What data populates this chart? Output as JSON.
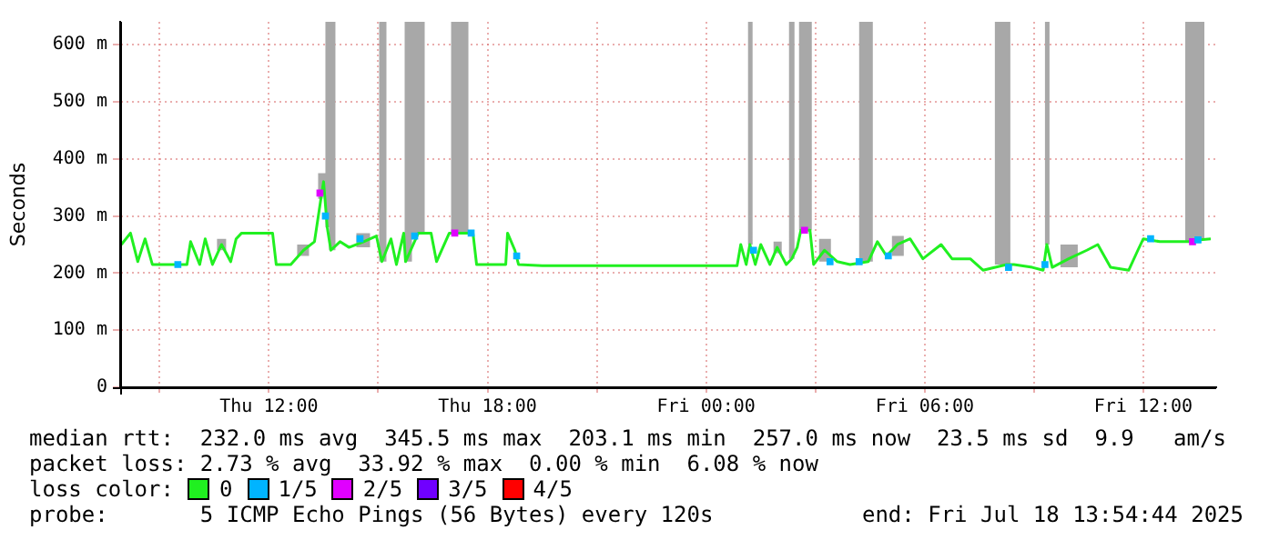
{
  "chart_data": {
    "type": "line",
    "ylabel": "Seconds",
    "xlim": [
      "2025-07-17T07:55",
      "2025-07-18T14:00"
    ],
    "xticks": [
      {
        "value": "2025-07-17T09:00",
        "label": null
      },
      {
        "value": "2025-07-17T12:00",
        "label": "Thu 12:00"
      },
      {
        "value": "2025-07-17T15:00",
        "label": null
      },
      {
        "value": "2025-07-17T18:00",
        "label": "Thu 18:00"
      },
      {
        "value": "2025-07-17T21:00",
        "label": null
      },
      {
        "value": "2025-07-18T00:00",
        "label": "Fri 00:00"
      },
      {
        "value": "2025-07-18T03:00",
        "label": null
      },
      {
        "value": "2025-07-18T06:00",
        "label": "Fri 06:00"
      },
      {
        "value": "2025-07-18T09:00",
        "label": null
      },
      {
        "value": "2025-07-18T12:00",
        "label": "Fri 12:00"
      }
    ],
    "ylim": [
      0,
      640
    ],
    "yticks": [
      0,
      {
        "value": 100,
        "label": "100 m"
      },
      {
        "value": 200,
        "label": "200 m"
      },
      {
        "value": 300,
        "label": "300 m"
      },
      {
        "value": 400,
        "label": "400 m"
      },
      {
        "value": 500,
        "label": "500 m"
      },
      {
        "value": 600,
        "label": "600 m"
      }
    ],
    "grid": true,
    "legend": "bottom",
    "legend_title": "loss color:",
    "series": [
      {
        "name": "0",
        "color": "#20f020",
        "x": [
          "2025-07-17T07:57",
          "2025-07-17T08:12",
          "2025-07-17T08:24",
          "2025-07-17T08:36",
          "2025-07-17T08:48",
          "2025-07-17T09:45",
          "2025-07-17T09:51",
          "2025-07-17T10:06",
          "2025-07-17T10:15",
          "2025-07-17T10:27",
          "2025-07-17T10:42",
          "2025-07-17T10:57",
          "2025-07-17T11:06",
          "2025-07-17T11:15",
          "2025-07-17T12:06",
          "2025-07-17T12:12",
          "2025-07-17T12:36",
          "2025-07-17T12:57",
          "2025-07-17T13:15",
          "2025-07-17T13:27",
          "2025-07-17T13:30",
          "2025-07-17T13:36",
          "2025-07-17T13:42",
          "2025-07-17T13:57",
          "2025-07-17T14:12",
          "2025-07-17T14:36",
          "2025-07-17T14:57",
          "2025-07-17T15:06",
          "2025-07-17T15:21",
          "2025-07-17T15:30",
          "2025-07-17T15:42",
          "2025-07-17T15:45",
          "2025-07-17T16:06",
          "2025-07-17T16:27",
          "2025-07-17T16:36",
          "2025-07-17T16:57",
          "2025-07-17T17:03",
          "2025-07-17T17:12",
          "2025-07-17T17:21",
          "2025-07-17T17:36",
          "2025-07-17T17:42",
          "2025-07-17T18:30",
          "2025-07-17T18:33",
          "2025-07-17T18:45",
          "2025-07-17T18:51",
          "2025-07-17T19:30",
          "2025-07-18T00:51",
          "2025-07-18T00:57",
          "2025-07-18T01:06",
          "2025-07-18T01:12",
          "2025-07-18T01:21",
          "2025-07-18T01:30",
          "2025-07-18T01:45",
          "2025-07-18T01:57",
          "2025-07-18T02:12",
          "2025-07-18T02:21",
          "2025-07-18T02:30",
          "2025-07-18T02:36",
          "2025-07-18T02:51",
          "2025-07-18T02:57",
          "2025-07-18T03:15",
          "2025-07-18T03:36",
          "2025-07-18T03:57",
          "2025-07-18T04:27",
          "2025-07-18T04:42",
          "2025-07-18T04:57",
          "2025-07-18T05:15",
          "2025-07-18T05:36",
          "2025-07-18T05:57",
          "2025-07-18T06:27",
          "2025-07-18T06:45",
          "2025-07-18T07:15",
          "2025-07-18T07:36",
          "2025-07-18T08:15",
          "2025-07-18T08:27",
          "2025-07-18T08:57",
          "2025-07-18T09:15",
          "2025-07-18T09:21",
          "2025-07-18T09:30",
          "2025-07-18T09:57",
          "2025-07-18T10:27",
          "2025-07-18T10:45",
          "2025-07-18T11:06",
          "2025-07-18T11:36",
          "2025-07-18T11:51",
          "2025-07-18T12:00",
          "2025-07-18T12:27",
          "2025-07-18T12:57",
          "2025-07-18T13:21",
          "2025-07-18T13:30",
          "2025-07-18T13:51"
        ],
        "values": [
          250,
          270,
          220,
          260,
          215,
          215,
          255,
          215,
          260,
          215,
          250,
          220,
          260,
          270,
          270,
          215,
          215,
          240,
          255,
          340,
          360,
          280,
          240,
          255,
          245,
          255,
          265,
          220,
          260,
          215,
          270,
          220,
          270,
          270,
          220,
          270,
          270,
          270,
          270,
          270,
          215,
          215,
          270,
          240,
          215,
          213,
          213,
          250,
          215,
          250,
          215,
          250,
          215,
          245,
          215,
          225,
          245,
          275,
          275,
          215,
          240,
          220,
          215,
          220,
          255,
          230,
          250,
          260,
          225,
          250,
          225,
          225,
          205,
          215,
          215,
          210,
          205,
          250,
          210,
          225,
          240,
          250,
          210,
          205,
          240,
          260,
          255,
          255,
          255,
          258,
          260
        ],
        "lower": [
          250,
          270,
          220,
          260,
          215,
          215,
          255,
          215,
          260,
          215,
          240,
          220,
          260,
          270,
          270,
          215,
          215,
          230,
          255,
          330,
          340,
          280,
          240,
          255,
          245,
          245,
          265,
          220,
          260,
          215,
          270,
          220,
          270,
          270,
          220,
          270,
          270,
          270,
          270,
          270,
          215,
          215,
          270,
          240,
          215,
          213,
          213,
          250,
          215,
          250,
          215,
          250,
          215,
          235,
          215,
          225,
          245,
          275,
          275,
          215,
          220,
          220,
          215,
          220,
          255,
          230,
          230,
          260,
          225,
          250,
          225,
          225,
          205,
          215,
          215,
          210,
          205,
          250,
          210,
          210,
          240,
          250,
          210,
          205,
          240,
          260,
          255,
          255,
          255,
          258,
          260
        ],
        "upper": [
          250,
          270,
          220,
          260,
          215,
          215,
          255,
          215,
          260,
          215,
          260,
          220,
          260,
          270,
          270,
          215,
          215,
          250,
          255,
          375,
          375,
          640,
          640,
          255,
          245,
          270,
          265,
          640,
          260,
          215,
          270,
          640,
          640,
          270,
          220,
          270,
          640,
          640,
          640,
          270,
          215,
          215,
          270,
          240,
          215,
          213,
          213,
          250,
          215,
          640,
          215,
          250,
          215,
          255,
          215,
          640,
          245,
          640,
          640,
          215,
          260,
          220,
          215,
          640,
          255,
          230,
          265,
          260,
          225,
          250,
          225,
          225,
          205,
          640,
          215,
          210,
          205,
          640,
          210,
          250,
          240,
          250,
          210,
          205,
          240,
          260,
          255,
          255,
          640,
          640,
          260
        ]
      },
      {
        "name": "1/5",
        "color": "#00b4ff",
        "type": "scatter",
        "x": [
          "2025-07-17T09:30",
          "2025-07-17T13:33",
          "2025-07-17T14:30",
          "2025-07-17T16:00",
          "2025-07-17T17:33",
          "2025-07-17T18:48",
          "2025-07-18T01:18",
          "2025-07-18T03:24",
          "2025-07-18T04:12",
          "2025-07-18T05:00",
          "2025-07-18T08:18",
          "2025-07-18T09:18",
          "2025-07-18T12:12",
          "2025-07-18T13:30"
        ],
        "values": [
          215,
          300,
          260,
          265,
          270,
          230,
          240,
          220,
          220,
          230,
          210,
          215,
          260,
          258
        ]
      },
      {
        "name": "2/5",
        "color": "#e000ff",
        "type": "scatter",
        "x": [
          "2025-07-17T13:24",
          "2025-07-17T17:06",
          "2025-07-18T02:42",
          "2025-07-18T13:21"
        ],
        "values": [
          340,
          270,
          275,
          255
        ]
      },
      {
        "name": "3/5",
        "color": "#7000ff",
        "type": "scatter"
      },
      {
        "name": "4/5",
        "color": "#ff0000",
        "type": "scatter"
      }
    ],
    "annotations": [
      "median rtt:  232.0 ms avg  345.5 ms max  203.1 ms min  257.0 ms now  23.5 ms sd  9.9   am/s",
      "packet loss: 2.73 % avg  33.92 % max  0.00 % min  6.08 % now",
      "probe:       5 ICMP Echo Pings (56 Bytes) every 120s",
      "end: Fri Jul 18 13:54:44 2025"
    ]
  }
}
